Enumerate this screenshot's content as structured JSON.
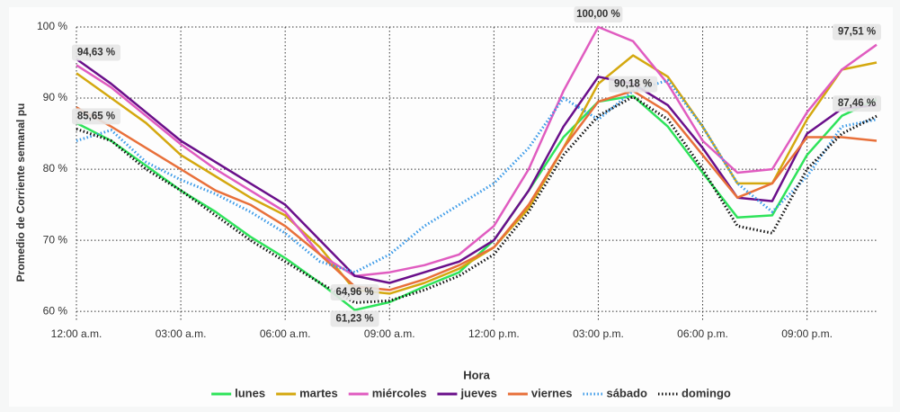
{
  "chart_data": {
    "type": "line",
    "y_label": "Promedio de Corriente semanal pu",
    "x_label": "Hora",
    "categories": [
      "12:00 a.m.",
      null,
      null,
      "03:00 a.m.",
      null,
      null,
      "06:00 a.m.",
      null,
      null,
      "09:00 a.m.",
      null,
      null,
      "12:00 p.m.",
      null,
      null,
      "03:00 p.m.",
      null,
      null,
      "06:00 p.m.",
      null,
      null,
      "09:00 p.m.",
      null,
      null
    ],
    "ylim": [
      58.5,
      100
    ],
    "yticks": [
      {
        "value": 60,
        "label": "60 %"
      },
      {
        "value": 70,
        "label": "70 %"
      },
      {
        "value": 80,
        "label": "80 %"
      },
      {
        "value": 90,
        "label": "90 %"
      },
      {
        "value": 100,
        "label": "100 %"
      }
    ],
    "grid": true,
    "legend": "bottom",
    "series": [
      {
        "name": "lunes",
        "color": "#2ee35a",
        "dash": "solid",
        "values": [
          86.5,
          84,
          80.5,
          77,
          74,
          70.5,
          67.5,
          64,
          60.2,
          61.3,
          63.5,
          65.5,
          70,
          77,
          84.5,
          89.5,
          90.3,
          86,
          79.5,
          73.2,
          73.5,
          82,
          87.5,
          89.8
        ]
      },
      {
        "name": "martes",
        "color": "#d4a80f",
        "dash": "solid",
        "values": [
          93.5,
          90,
          86.5,
          82,
          79,
          76,
          73.5,
          69,
          63,
          62.5,
          64,
          66,
          69,
          74.5,
          83,
          92,
          96,
          93,
          86,
          78,
          78,
          87,
          94,
          95
        ]
      },
      {
        "name": "miércoles",
        "color": "#e05cc0",
        "dash": "solid",
        "values": [
          94.63,
          91.5,
          87.5,
          83.5,
          80,
          77,
          74,
          68,
          64.96,
          65.5,
          66.5,
          68,
          72,
          80,
          91,
          100,
          98,
          92,
          84,
          79.5,
          80,
          88,
          94,
          97.51
        ],
        "value_labels": [
          "94,63 %",
          null,
          null,
          null,
          null,
          null,
          null,
          null,
          "64,96 %",
          null,
          null,
          null,
          null,
          null,
          null,
          "100,00 %",
          null,
          null,
          null,
          null,
          null,
          null,
          null,
          "97,51 %"
        ]
      },
      {
        "name": "jueves",
        "color": "#6a0f8a",
        "dash": "solid",
        "values": [
          95.5,
          92,
          88,
          84,
          81,
          78,
          75,
          70,
          65,
          64,
          65.5,
          67,
          70,
          77,
          86,
          93,
          92,
          89,
          83,
          76,
          75.5,
          85,
          88.5,
          89
        ]
      },
      {
        "name": "viernes",
        "color": "#e8703a",
        "dash": "solid",
        "values": [
          88.7,
          86,
          83,
          80,
          77,
          75,
          72,
          68,
          63.5,
          63,
          64.5,
          66.5,
          69,
          75,
          83,
          89.5,
          91,
          88,
          82,
          76,
          78,
          84.5,
          84.5,
          84
        ]
      },
      {
        "name": "sábado",
        "color": "#3a9ae8",
        "dash": "dotted",
        "values": [
          84,
          85.5,
          81,
          78.5,
          76.5,
          74,
          71,
          67,
          65.5,
          68,
          72,
          75,
          78,
          83,
          90,
          87,
          91,
          92.5,
          86,
          78,
          74,
          79,
          86,
          87
        ]
      },
      {
        "name": "domingo",
        "color": "#111111",
        "dash": "dotted",
        "values": [
          85.65,
          84,
          80,
          77,
          73.5,
          70,
          67,
          64,
          61.23,
          61.5,
          63,
          65,
          68,
          74,
          82,
          87.5,
          90.18,
          87,
          80,
          72,
          71,
          80,
          85,
          87.46
        ],
        "value_labels": [
          "85,65 %",
          null,
          null,
          null,
          null,
          null,
          null,
          null,
          "61,23 %",
          null,
          null,
          null,
          null,
          null,
          null,
          null,
          "90,18 %",
          null,
          null,
          null,
          null,
          null,
          null,
          "87,46 %"
        ]
      }
    ]
  }
}
